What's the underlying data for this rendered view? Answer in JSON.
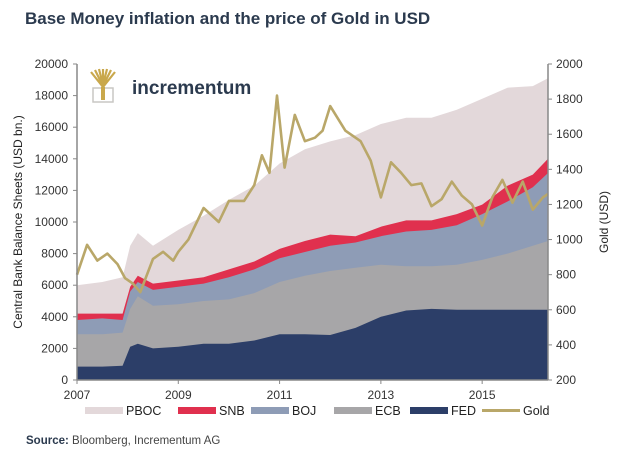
{
  "title": "Base Money inflation and the price of Gold in USD",
  "logo": {
    "text": "incrementum",
    "icon": "tree-icon"
  },
  "source": {
    "label": "Source:",
    "text": " Bloomberg, Incrementum AG"
  },
  "colors": {
    "PBOC": "#e3d8da",
    "SNB": "#e0304e",
    "BOJ": "#8e9cb6",
    "ECB": "#a7a6a8",
    "FED": "#2c3e68",
    "Gold": "#b9a769"
  },
  "chart_data": {
    "type": "area",
    "title": "Base Money inflation and the price of Gold in USD",
    "xlabel": "",
    "ylabel": "Central Bank Balance Sheets (USD bn.)",
    "y2label": "Gold (USD)",
    "xlim": [
      2007,
      2016.3
    ],
    "ylim": [
      0,
      20000
    ],
    "y2lim": [
      200,
      2000
    ],
    "xticks": [
      "2007",
      "2009",
      "2011",
      "2013",
      "2015"
    ],
    "xtick_values": [
      2007,
      2009,
      2011,
      2013,
      2015
    ],
    "yticks": [
      "0",
      "2000",
      "4000",
      "6000",
      "8000",
      "10000",
      "12000",
      "14000",
      "16000",
      "18000",
      "20000"
    ],
    "y2ticks": [
      "200",
      "400",
      "600",
      "800",
      "1000",
      "1200",
      "1400",
      "1600",
      "1800",
      "2000"
    ],
    "grid": false,
    "legend_position": "bottom",
    "stacking": "stacked cumulative tops (USD bn) in order FED, ECB, BOJ, SNB, PBOC",
    "x": [
      2007.0,
      2007.5,
      2007.9,
      2008.05,
      2008.2,
      2008.5,
      2009.0,
      2009.5,
      2010.0,
      2010.5,
      2011.0,
      2011.5,
      2012.0,
      2012.5,
      2013.0,
      2013.5,
      2014.0,
      2014.5,
      2015.0,
      2015.5,
      2016.0,
      2016.3
    ],
    "series": [
      {
        "name": "FED",
        "cumulative_top": [
          850,
          850,
          900,
          2100,
          2300,
          2000,
          2100,
          2300,
          2300,
          2500,
          2900,
          2900,
          2850,
          3300,
          4000,
          4400,
          4500,
          4450,
          4450,
          4450,
          4450,
          4450
        ]
      },
      {
        "name": "ECB",
        "cumulative_top": [
          2900,
          2900,
          3000,
          4500,
          5300,
          4700,
          4800,
          5000,
          5100,
          5500,
          6200,
          6600,
          6900,
          7100,
          7300,
          7200,
          7200,
          7300,
          7600,
          8000,
          8500,
          8800
        ]
      },
      {
        "name": "BOJ",
        "cumulative_top": [
          3800,
          3900,
          3800,
          5600,
          6200,
          5700,
          5900,
          6100,
          6500,
          7000,
          7700,
          8100,
          8500,
          8700,
          9100,
          9400,
          9500,
          9800,
          10500,
          11300,
          12200,
          13100
        ]
      },
      {
        "name": "SNB",
        "cumulative_top": [
          4200,
          4200,
          4200,
          5900,
          6600,
          6100,
          6300,
          6500,
          7000,
          7500,
          8300,
          8800,
          9200,
          9100,
          9700,
          10100,
          10100,
          10500,
          11100,
          12300,
          13000,
          14000
        ]
      },
      {
        "name": "PBOC",
        "cumulative_top": [
          6000,
          6200,
          6500,
          8500,
          9300,
          8500,
          9500,
          10400,
          11400,
          12300,
          13700,
          14600,
          15100,
          15500,
          16200,
          16600,
          16600,
          17100,
          17800,
          18500,
          18600,
          19100
        ]
      }
    ],
    "gold": {
      "name": "Gold",
      "axis": "right",
      "x": [
        2007.0,
        2007.2,
        2007.4,
        2007.6,
        2007.8,
        2007.95,
        2008.1,
        2008.25,
        2008.5,
        2008.7,
        2008.9,
        2009.0,
        2009.2,
        2009.5,
        2009.8,
        2010.0,
        2010.3,
        2010.5,
        2010.65,
        2010.8,
        2010.95,
        2011.1,
        2011.3,
        2011.5,
        2011.7,
        2011.85,
        2012.0,
        2012.3,
        2012.6,
        2012.8,
        2013.0,
        2013.2,
        2013.4,
        2013.6,
        2013.8,
        2014.0,
        2014.2,
        2014.4,
        2014.6,
        2014.8,
        2015.0,
        2015.2,
        2015.4,
        2015.6,
        2015.8,
        2016.0,
        2016.2,
        2016.3
      ],
      "values": [
        800,
        970,
        880,
        920,
        860,
        780,
        750,
        700,
        890,
        930,
        880,
        930,
        1000,
        1180,
        1100,
        1220,
        1220,
        1310,
        1480,
        1380,
        1820,
        1410,
        1710,
        1560,
        1580,
        1620,
        1760,
        1620,
        1560,
        1450,
        1240,
        1440,
        1380,
        1310,
        1320,
        1190,
        1230,
        1330,
        1250,
        1200,
        1080,
        1240,
        1340,
        1210,
        1330,
        1170,
        1240,
        1260
      ]
    }
  },
  "legend": [
    {
      "label": "PBOC",
      "kind": "area"
    },
    {
      "label": "SNB",
      "kind": "area"
    },
    {
      "label": "BOJ",
      "kind": "area"
    },
    {
      "label": "ECB",
      "kind": "area"
    },
    {
      "label": "FED",
      "kind": "area"
    },
    {
      "label": "Gold",
      "kind": "line"
    }
  ]
}
